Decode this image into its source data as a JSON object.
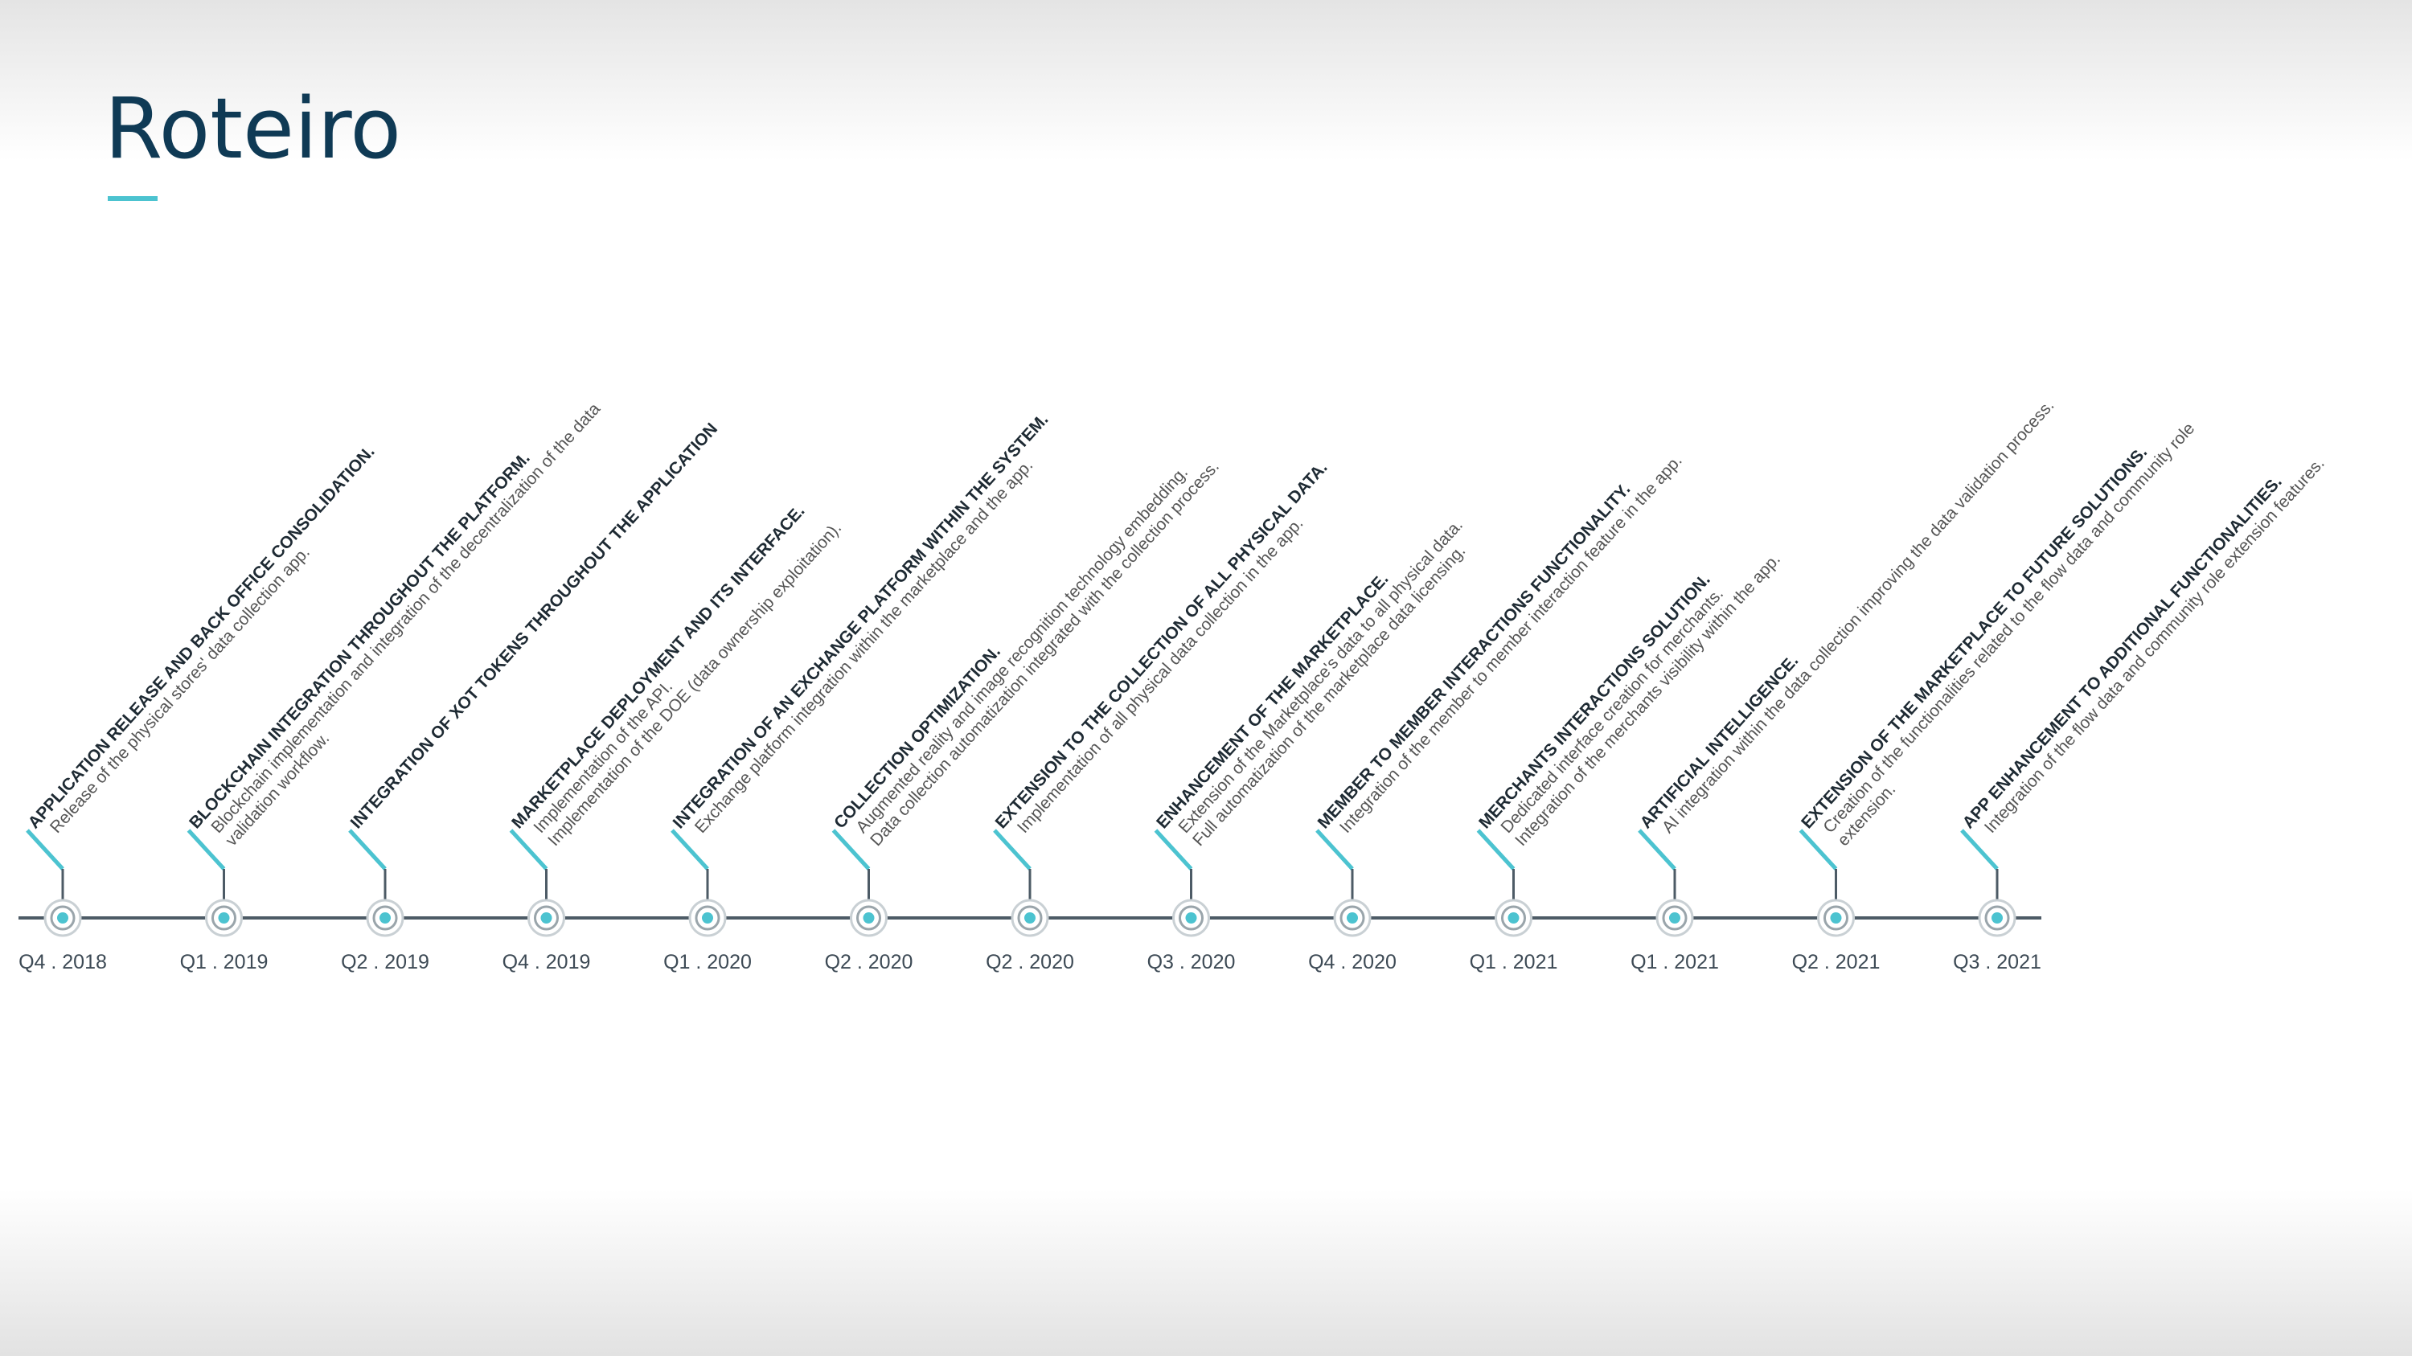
{
  "header": {
    "title": "Roteiro"
  },
  "milestones": [
    {
      "date": "Q4 . 2018",
      "heading": "APPLICATION RELEASE AND BACK OFFICE CONSOLIDATION.",
      "lines": [
        "Release of the physical stores' data collection app."
      ]
    },
    {
      "date": "Q1 . 2019",
      "heading": "BLOCKCHAIN INTEGRATION THROUGHOUT THE PLATFORM.",
      "lines": [
        "Blockchain implementation and integration of the decentralization of the data",
        "validation workflow."
      ]
    },
    {
      "date": "Q2 . 2019",
      "heading": "INTEGRATION OF XOT TOKENS THROUGHOUT THE APPLICATION",
      "lines": []
    },
    {
      "date": "Q4 . 2019",
      "heading": "MARKETPLACE DEPLOYMENT AND ITS INTERFACE.",
      "lines": [
        "Implementation of the API.",
        "Implementation of the DOE (data ownership exploitation)."
      ]
    },
    {
      "date": "Q1 . 2020",
      "heading": "INTEGRATION OF AN EXCHANGE PLATFORM WITHIN THE SYSTEM.",
      "lines": [
        "Exchange platform integration within the marketplace and the app."
      ]
    },
    {
      "date": "Q2 . 2020",
      "heading": "COLLECTION OPTIMIZATION.",
      "lines": [
        "Augmented reality and image recognition technology embedding.",
        "Data collection automatization integrated with the collection process."
      ]
    },
    {
      "date": "Q2 . 2020",
      "heading": "EXTENSION TO THE COLLECTION OF ALL PHYSICAL DATA.",
      "lines": [
        "Implementation of all physical data collection in the app."
      ]
    },
    {
      "date": "Q3 . 2020",
      "heading": "ENHANCEMENT OF THE MARKETPLACE.",
      "lines": [
        "Extension of the Marketplace's data to all physical data.",
        "Full automatization of the marketplace data licensing."
      ]
    },
    {
      "date": "Q4 . 2020",
      "heading": "MEMBER TO MEMBER INTERACTIONS FUNCTIONALITY.",
      "lines": [
        "Integration of the member to member interaction feature in the app."
      ]
    },
    {
      "date": "Q1 . 2021",
      "heading": "MERCHANTS INTERACTIONS SOLUTION.",
      "lines": [
        "Dedicated interface creation for merchants.",
        "Integration of the merchants visibility within the app."
      ]
    },
    {
      "date": "Q1 . 2021",
      "heading": "ARTIFICIAL INTELLIGENCE.",
      "lines": [
        "AI integration within the data collection improving the data validation process."
      ]
    },
    {
      "date": "Q2 . 2021",
      "heading": "EXTENSION OF THE MARKETPLACE TO FUTURE SOLUTIONS.",
      "lines": [
        "Creation of the functionalities related to the flow data and community role",
        "extension."
      ]
    },
    {
      "date": "Q3 . 2021",
      "heading": "APP ENHANCEMENT TO ADDITIONAL FUNCTIONALITIES.",
      "lines": [
        "Integration of the flow data and community role extension features."
      ]
    }
  ]
}
